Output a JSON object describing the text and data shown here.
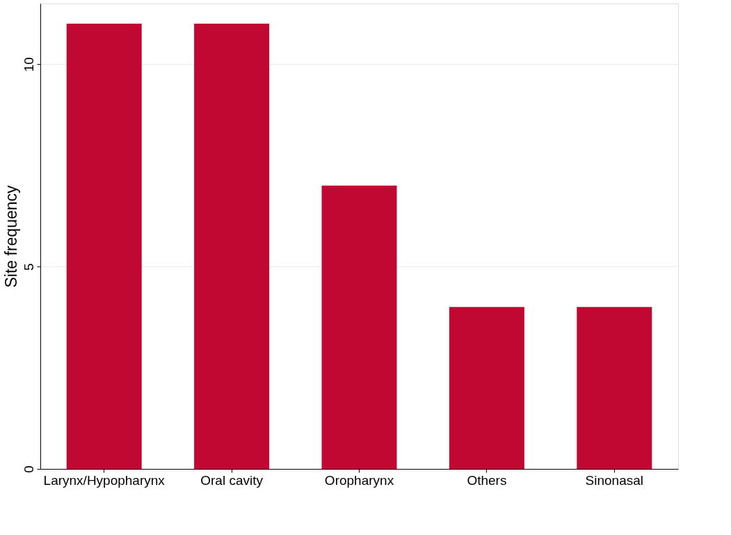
{
  "chart_data": {
    "type": "bar",
    "ylabel": "Site frequency",
    "categories": [
      "Larynx/Hypopharynx",
      "Oral cavity",
      "Oropharynx",
      "Others",
      "Sinonasal"
    ],
    "values": [
      11,
      11,
      7,
      4,
      4
    ],
    "color": "#c00833",
    "ylim": [
      0,
      11.5
    ],
    "yticks": [
      0,
      5,
      10
    ],
    "grid": "y"
  }
}
